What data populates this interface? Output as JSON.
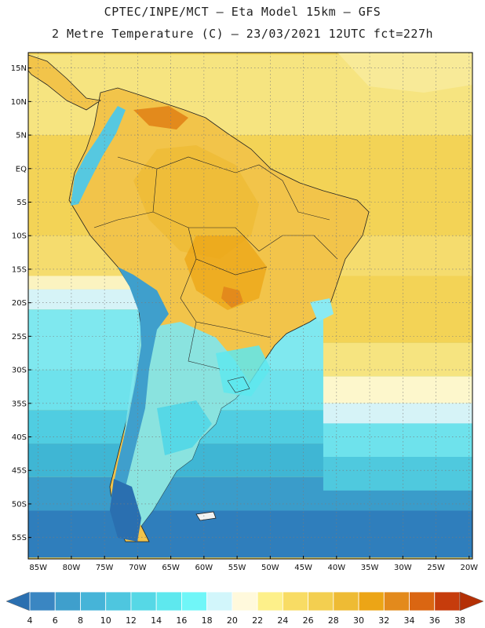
{
  "title_line1": "CPTEC/INPE/MCT –  Eta Model 15km – GFS",
  "title_line2": "2 Metre Temperature (C) – 23/03/2021 12UTC fct=227h",
  "lat_labels": [
    "15N",
    "10N",
    "5N",
    "EQ",
    "5S",
    "10S",
    "15S",
    "20S",
    "25S",
    "30S",
    "35S",
    "40S",
    "45S",
    "50S",
    "55S"
  ],
  "lat_values": [
    15,
    10,
    5,
    0,
    -5,
    -10,
    -15,
    -20,
    -25,
    -30,
    -35,
    -40,
    -45,
    -50,
    -55
  ],
  "lon_labels": [
    "85W",
    "80W",
    "75W",
    "70W",
    "65W",
    "60W",
    "55W",
    "50W",
    "45W",
    "40W",
    "35W",
    "30W",
    "25W",
    "20W"
  ],
  "lon_values": [
    -85,
    -80,
    -75,
    -70,
    -65,
    -60,
    -55,
    -50,
    -45,
    -40,
    -35,
    -30,
    -25,
    -20
  ],
  "colorbar": {
    "labels": [
      "4",
      "6",
      "8",
      "10",
      "12",
      "14",
      "16",
      "18",
      "20",
      "22",
      "24",
      "26",
      "28",
      "30",
      "32",
      "34",
      "36",
      "38"
    ],
    "colors": [
      "#2a6fb0",
      "#3a86c2",
      "#3f9fcc",
      "#46b4d8",
      "#4ec6df",
      "#56d8e6",
      "#5ee8ee",
      "#70f6f8",
      "#d2f6fb",
      "#fff9dc",
      "#fdf08a",
      "#f8dc64",
      "#f3cf50",
      "#eebb34",
      "#eca516",
      "#e38a1c",
      "#da6612",
      "#c63c0c",
      "#b43006"
    ]
  },
  "map": {
    "ocean_bands": [
      {
        "lat_top": 17,
        "lat_bottom": 5,
        "color": "#f6e480"
      },
      {
        "lat_top": 5,
        "lat_bottom": -10,
        "color": "#f3d356"
      },
      {
        "lat_top": -10,
        "lat_bottom": -16,
        "color": "#f5dc6e"
      },
      {
        "lat_top": -16,
        "lat_bottom": -18,
        "color": "#fbf3c0"
      },
      {
        "lat_top": -18,
        "lat_bottom": -21,
        "color": "#d6f3f7"
      },
      {
        "lat_top": -21,
        "lat_bottom": -30,
        "color": "#7fe8ef"
      },
      {
        "lat_top": -30,
        "lat_bottom": -36,
        "color": "#6ee2ec"
      },
      {
        "lat_top": -36,
        "lat_bottom": -41,
        "color": "#50cde1"
      },
      {
        "lat_top": -41,
        "lat_bottom": -46,
        "color": "#3fb6d4"
      },
      {
        "lat_top": -46,
        "lat_bottom": -51,
        "color": "#3a9cca"
      },
      {
        "lat_top": -51,
        "lat_bottom": -58,
        "color": "#2f7ebc"
      }
    ],
    "east_ocean_bands": [
      {
        "lat_top": -16,
        "lat_bottom": -26,
        "color": "#f3d356"
      },
      {
        "lat_top": -26,
        "lat_bottom": -31,
        "color": "#f6e480"
      },
      {
        "lat_top": -31,
        "lat_bottom": -35,
        "color": "#fdf7cc"
      },
      {
        "lat_top": -35,
        "lat_bottom": -38,
        "color": "#d6f3f7"
      },
      {
        "lat_top": -38,
        "lat_bottom": -43,
        "color": "#6ee2ec"
      },
      {
        "lat_top": -43,
        "lat_bottom": -48,
        "color": "#4fc9de"
      }
    ]
  }
}
